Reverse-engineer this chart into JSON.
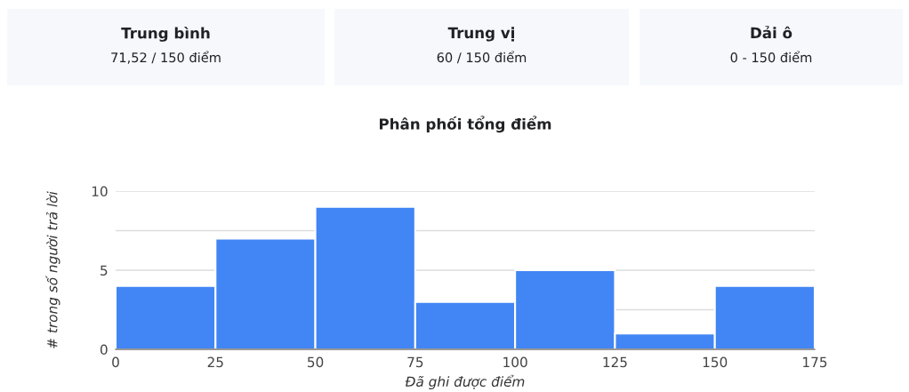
{
  "chart_data": [
    {
      "type": "other",
      "title": "Trung bình",
      "annotations": [
        "71,52 / 150 điểm"
      ]
    },
    {
      "type": "other",
      "title": "Trung vị",
      "annotations": [
        "60 / 150 điểm"
      ]
    },
    {
      "type": "other",
      "title": "Dải ô",
      "annotations": [
        "0 - 150 điểm"
      ]
    },
    {
      "type": "histogram",
      "title": "Phân phối tổng điểm",
      "xlabel": "Đã ghi được điểm",
      "ylabel": "# trong số người trả lời",
      "bins": [
        0,
        25,
        50,
        75,
        100,
        125,
        150,
        175
      ],
      "values": [
        4,
        7,
        9,
        3,
        5,
        1,
        4
      ],
      "color": "#4285f4",
      "xlim": [
        0,
        175
      ],
      "ylim": [
        0,
        10
      ],
      "xticks": [
        0,
        25,
        50,
        75,
        100,
        125,
        150,
        175
      ],
      "yticks": [
        0,
        {
          "value": 2.5,
          "label": null
        },
        5,
        {
          "value": 7.5,
          "label": null
        },
        10
      ],
      "grid": "y"
    }
  ]
}
